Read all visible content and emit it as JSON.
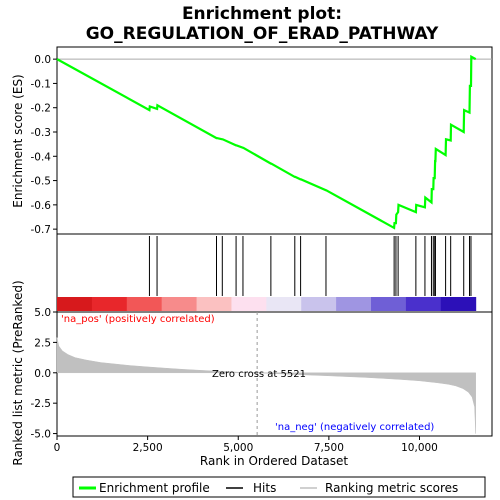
{
  "chart_data": [
    {
      "type": "line",
      "title_line1": "Enrichment plot:",
      "title_line2": "GO_REGULATION_OF_ERAD_PATHWAY",
      "ylabel": "Enrichment score (ES)",
      "xlim": [
        0,
        12000
      ],
      "ylim": [
        -0.72,
        0.05
      ],
      "y_ticks": [
        0.0,
        -0.1,
        -0.2,
        -0.3,
        -0.4,
        -0.5,
        -0.6,
        -0.7
      ],
      "y_tick_labels": [
        "0.0",
        "-0.1",
        "-0.2",
        "-0.3",
        "-0.4",
        "-0.5",
        "-0.6",
        "-0.7"
      ],
      "line_color": "#00ff00",
      "series": [
        {
          "name": "Enrichment profile",
          "x": [
            0,
            2550,
            2560,
            2760,
            2770,
            4400,
            4410,
            4560,
            4570,
            4940,
            4950,
            5130,
            5140,
            5900,
            5910,
            6560,
            6570,
            6720,
            6730,
            7420,
            7430,
            9300,
            9310,
            9350,
            9360,
            9410,
            9420,
            9900,
            9910,
            10150,
            10160,
            10330,
            10340,
            10380,
            10390,
            10420,
            10430,
            10440,
            10450,
            10720,
            10730,
            10860,
            10870,
            11220,
            11230,
            11380,
            11390,
            11420,
            11430,
            11550
          ],
          "y": [
            0.0,
            -0.21,
            -0.195,
            -0.205,
            -0.19,
            -0.325,
            -0.325,
            -0.33,
            -0.33,
            -0.355,
            -0.355,
            -0.365,
            -0.365,
            -0.43,
            -0.43,
            -0.485,
            -0.485,
            -0.495,
            -0.495,
            -0.54,
            -0.54,
            -0.695,
            -0.675,
            -0.675,
            -0.64,
            -0.63,
            -0.6,
            -0.63,
            -0.6,
            -0.61,
            -0.57,
            -0.59,
            -0.535,
            -0.535,
            -0.49,
            -0.49,
            -0.42,
            -0.42,
            -0.37,
            -0.395,
            -0.33,
            -0.335,
            -0.27,
            -0.3,
            -0.21,
            -0.22,
            -0.11,
            -0.11,
            0.01,
            0.0
          ]
        }
      ]
    },
    {
      "type": "scatter",
      "name": "hits",
      "xlim": [
        0,
        12000
      ],
      "hits_x": [
        2550,
        2760,
        4400,
        4560,
        4940,
        5130,
        5900,
        6560,
        6720,
        7420,
        9300,
        9350,
        9410,
        9900,
        10150,
        10330,
        10380,
        10420,
        10440,
        10720,
        10860,
        11220,
        11380,
        11420
      ],
      "heat_colors": [
        "#d7191c",
        "#e8272b",
        "#f25757",
        "#f78b8b",
        "#fbc1c1",
        "#fde0ef",
        "#e9e6f5",
        "#c9c3ec",
        "#9f95e2",
        "#6f5fd6",
        "#4a30cc",
        "#2c10b8"
      ]
    },
    {
      "type": "area",
      "ylabel": "Ranked list metric (PreRanked)",
      "xlabel": "Rank in Ordered Dataset",
      "xlim": [
        0,
        12000
      ],
      "ylim": [
        -5.2,
        5.0
      ],
      "y_ticks": [
        5.0,
        2.5,
        0.0,
        -2.5,
        -5.0
      ],
      "y_tick_labels": [
        "5.0",
        "2.5",
        "0.0",
        "-2.5",
        "-5.0"
      ],
      "x_ticks": [
        0,
        2500,
        5000,
        7500,
        10000
      ],
      "x_tick_labels": [
        "0",
        "2,500",
        "5,000",
        "7,500",
        "10,000"
      ],
      "fill_color": "#c0c0c0",
      "zero_cross": 5521,
      "zero_cross_label": "Zero cross at 5521",
      "pos_label": "'na_pos' (positively correlated)",
      "neg_label": "'na_neg' (negatively correlated)",
      "pos_label_color": "#ff0000",
      "neg_label_color": "#0000ff",
      "x": [
        0,
        50,
        150,
        300,
        500,
        800,
        1200,
        1600,
        2000,
        2500,
        3000,
        3500,
        4000,
        4500,
        5000,
        5521,
        6000,
        6500,
        7000,
        7500,
        8000,
        8500,
        9000,
        9500,
        10000,
        10500,
        10800,
        11000,
        11200,
        11350,
        11450,
        11520,
        11550
      ],
      "y": [
        2.9,
        2.2,
        1.8,
        1.5,
        1.25,
        1.05,
        0.85,
        0.72,
        0.6,
        0.48,
        0.38,
        0.28,
        0.2,
        0.12,
        0.05,
        0.0,
        -0.07,
        -0.13,
        -0.19,
        -0.25,
        -0.31,
        -0.38,
        -0.46,
        -0.55,
        -0.66,
        -0.82,
        -0.95,
        -1.08,
        -1.3,
        -1.6,
        -2.0,
        -2.8,
        -5.0
      ]
    }
  ],
  "legend": {
    "items": [
      {
        "label": "Enrichment profile",
        "color": "#00ff00"
      },
      {
        "label": "Hits",
        "color": "#000000"
      },
      {
        "label": "Ranking metric scores",
        "color": "#c0c0c0"
      }
    ]
  }
}
